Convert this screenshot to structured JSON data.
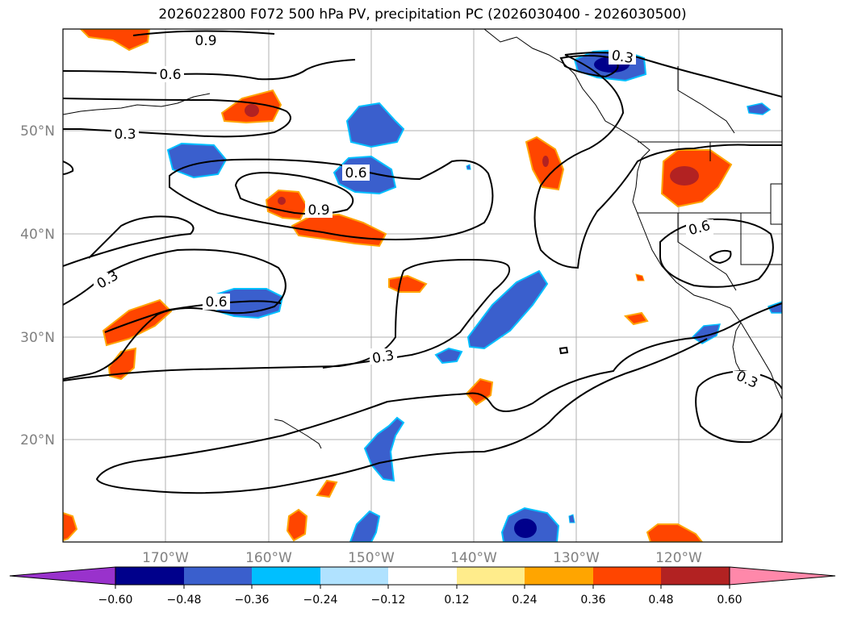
{
  "title": "2026022800 F072 500 hPa PV, precipitation PC (2026030400 - 2026030500)",
  "lat_labels": [
    "50°N",
    "40°N",
    "30°N",
    "20°N"
  ],
  "lon_labels": [
    "170°W",
    "160°W",
    "150°W",
    "140°W",
    "130°W",
    "120°W"
  ],
  "contour_labels": [
    "0.9",
    "0.6",
    "0.3",
    "0.6",
    "0.9",
    "0.3",
    "0.6",
    "0.3",
    "0.3",
    "0.6",
    "0.3"
  ],
  "colorbar": {
    "ticks": [
      "−0.60",
      "−0.48",
      "−0.36",
      "−0.24",
      "−0.12",
      "0.12",
      "0.24",
      "0.36",
      "0.48",
      "0.60"
    ],
    "colors": [
      "#9932cc",
      "#00008b",
      "#3a5fcd",
      "#00bfff",
      "#b0e2ff",
      "#ffffff",
      "#ffec8b",
      "#ffa500",
      "#ff4500",
      "#b22222",
      "#ff88aa"
    ]
  },
  "legend_colors": {
    "frame": "#000000",
    "grid": "#b0b0b0",
    "coast": "#000000"
  }
}
